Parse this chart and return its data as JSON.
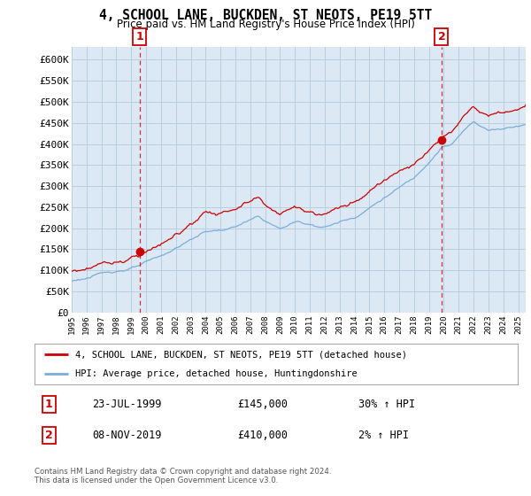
{
  "title": "4, SCHOOL LANE, BUCKDEN, ST NEOTS, PE19 5TT",
  "subtitle": "Price paid vs. HM Land Registry's House Price Index (HPI)",
  "legend_line1": "4, SCHOOL LANE, BUCKDEN, ST NEOTS, PE19 5TT (detached house)",
  "legend_line2": "HPI: Average price, detached house, Huntingdonshire",
  "annotation1_date": "23-JUL-1999",
  "annotation1_price": "£145,000",
  "annotation1_hpi": "30% ↑ HPI",
  "annotation2_date": "08-NOV-2019",
  "annotation2_price": "£410,000",
  "annotation2_hpi": "2% ↑ HPI",
  "footer": "Contains HM Land Registry data © Crown copyright and database right 2024.\nThis data is licensed under the Open Government Licence v3.0.",
  "red_color": "#cc0000",
  "blue_color": "#7aaddc",
  "chart_bg": "#dce9f5",
  "background_color": "#ffffff",
  "grid_color": "#b8cfe0",
  "ylim": [
    0,
    630000
  ],
  "yticks": [
    0,
    50000,
    100000,
    150000,
    200000,
    250000,
    300000,
    350000,
    400000,
    450000,
    500000,
    550000,
    600000
  ],
  "sale1_x": 1999.56,
  "sale1_y": 145000,
  "sale2_x": 2019.85,
  "sale2_y": 410000,
  "xlim_start": 1995.0,
  "xlim_end": 2025.5
}
